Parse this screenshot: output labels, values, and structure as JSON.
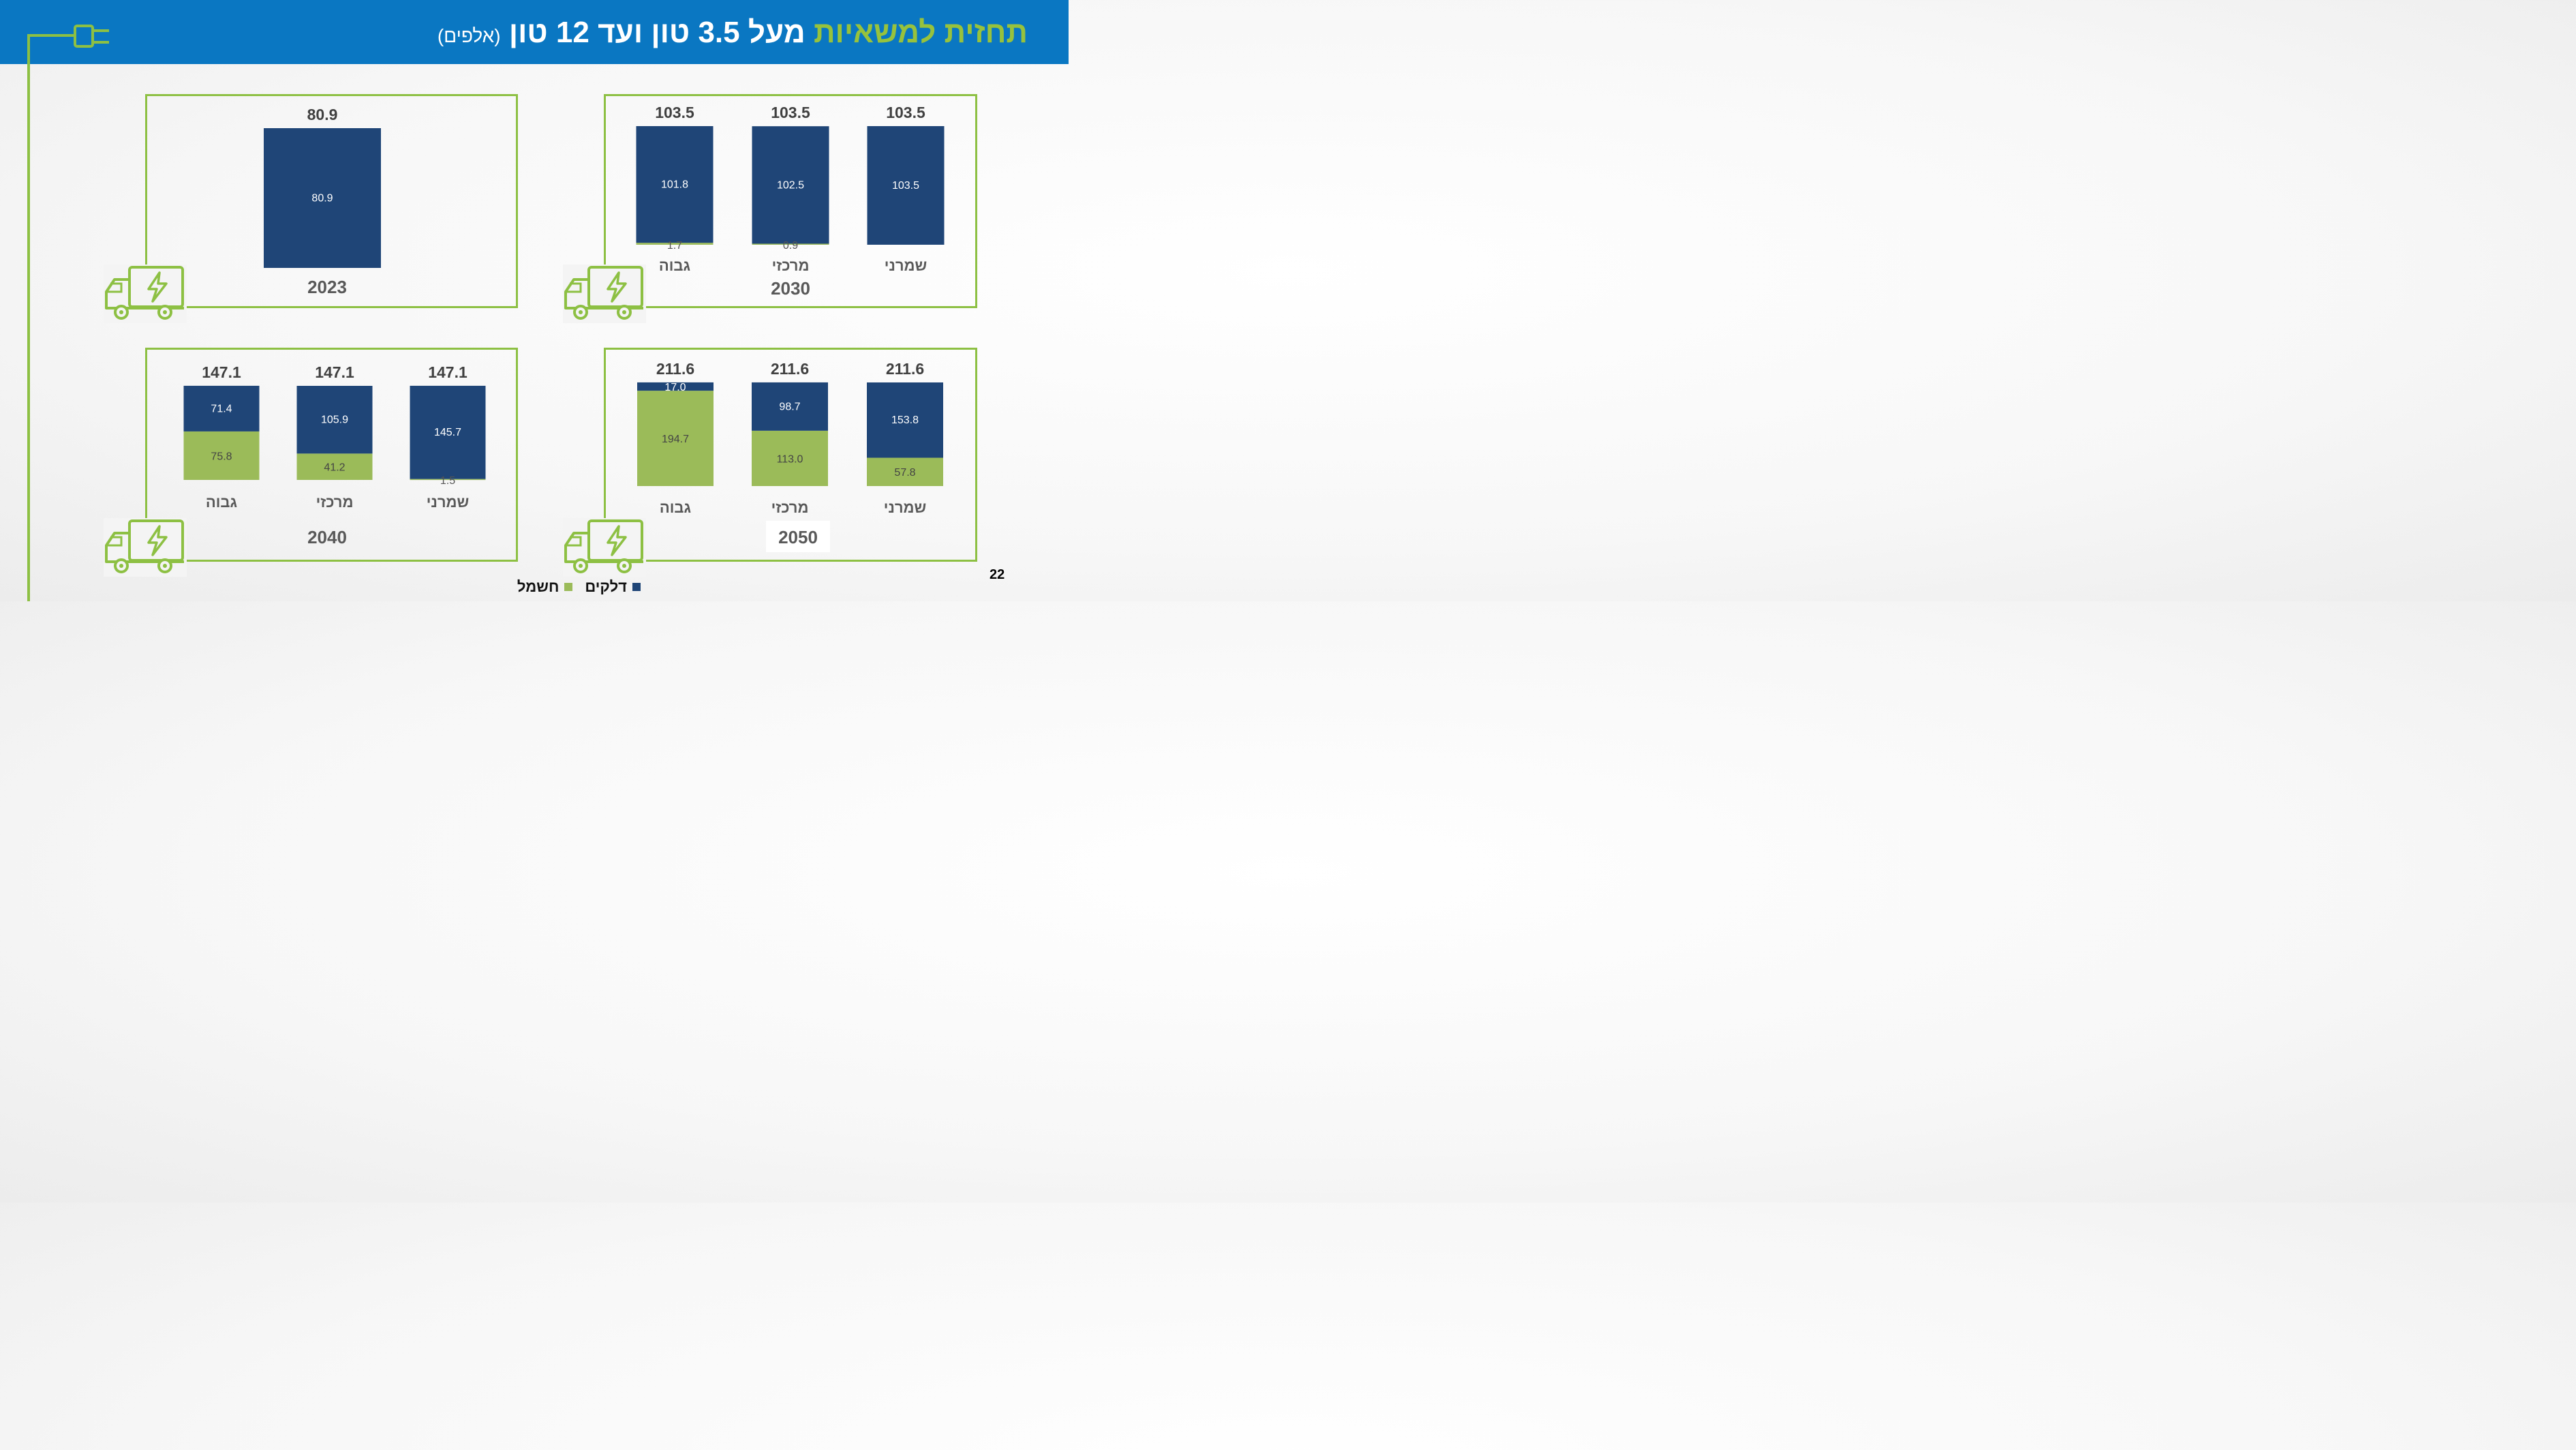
{
  "header": {
    "title_green": "תחזית למשאיות",
    "title_white": "מעל 3.5 טון ועד 12 טון",
    "title_unit": "(אלפים)"
  },
  "page_number": "22",
  "colors": {
    "fuel": "#1f4577",
    "electric": "#9bbb59",
    "accent": "#8dc043",
    "header": "#0a77c2"
  },
  "legend": {
    "fuel_label": "דלקים",
    "electric_label": "חשמל"
  },
  "chart_data": [
    {
      "type": "bar",
      "stacked": true,
      "title": "2023",
      "categories": [
        ""
      ],
      "series": [
        {
          "name": "חשמל",
          "values": [
            0
          ]
        },
        {
          "name": "דלקים",
          "values": [
            80.9
          ]
        }
      ],
      "totals": [
        80.9
      ]
    },
    {
      "type": "bar",
      "stacked": true,
      "title": "2030",
      "categories": [
        "גבוה",
        "מרכזי",
        "שמרני"
      ],
      "series": [
        {
          "name": "חשמל",
          "values": [
            1.7,
            0.9,
            0
          ]
        },
        {
          "name": "דלקים",
          "values": [
            101.8,
            102.5,
            103.5
          ]
        }
      ],
      "totals": [
        103.5,
        103.5,
        103.5
      ]
    },
    {
      "type": "bar",
      "stacked": true,
      "title": "2040",
      "categories": [
        "גבוה",
        "מרכזי",
        "שמרני"
      ],
      "series": [
        {
          "name": "חשמל",
          "values": [
            75.8,
            41.2,
            1.5
          ]
        },
        {
          "name": "דלקים",
          "values": [
            71.4,
            105.9,
            145.7
          ]
        }
      ],
      "totals": [
        147.1,
        147.1,
        147.1
      ]
    },
    {
      "type": "bar",
      "stacked": true,
      "title": "2050",
      "categories": [
        "גבוה",
        "מרכזי",
        "שמרני"
      ],
      "series": [
        {
          "name": "חשמל",
          "values": [
            194.7,
            113.0,
            57.8
          ]
        },
        {
          "name": "דלקים",
          "values": [
            17.0,
            98.7,
            153.8
          ]
        }
      ],
      "totals": [
        211.6,
        211.6,
        211.6
      ]
    }
  ]
}
